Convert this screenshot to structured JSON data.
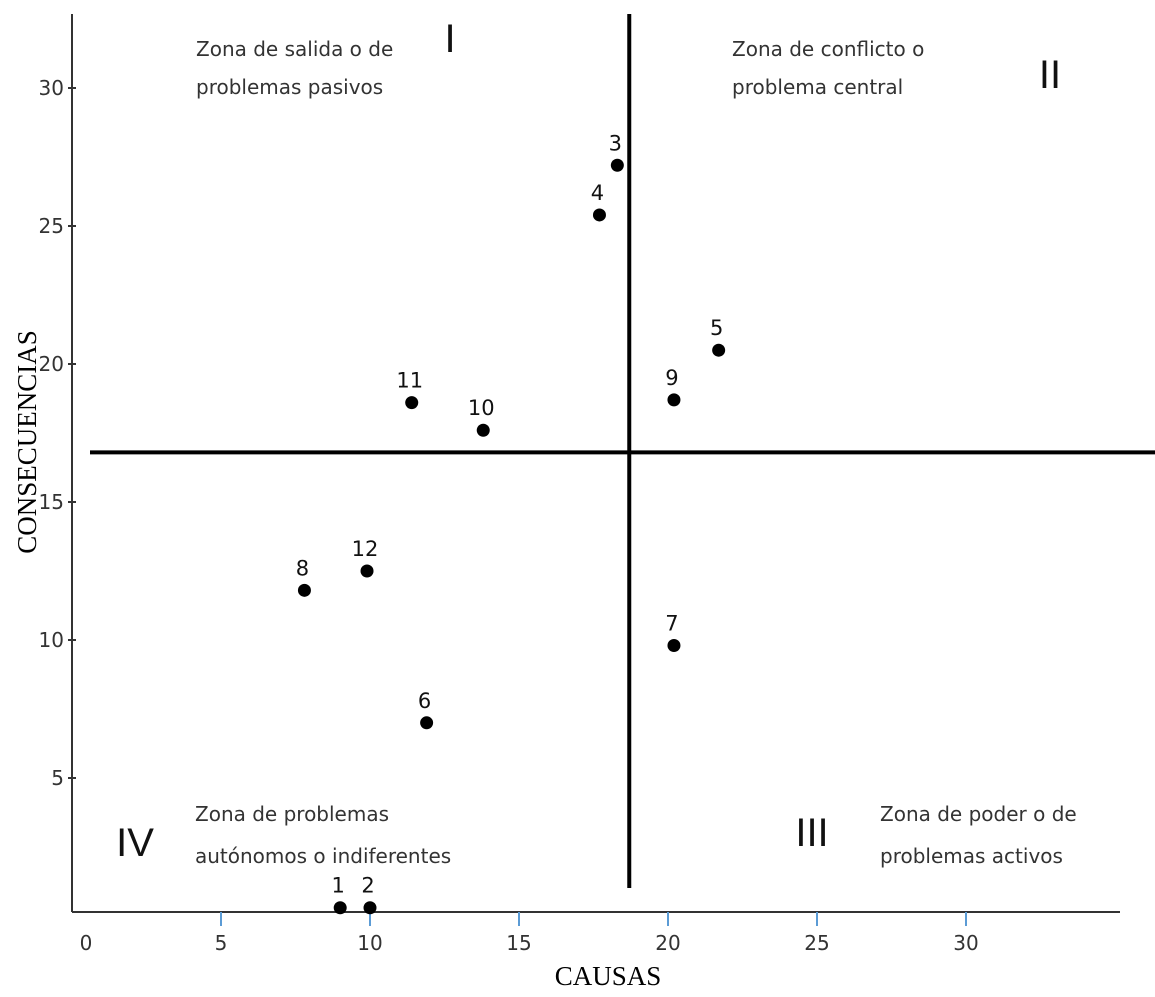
{
  "chart_data": {
    "type": "scatter",
    "xlabel": "CAUSAS",
    "ylabel": "CONSECUENCIAS",
    "x_ticks": [
      "0",
      "5",
      "10",
      "15",
      "20",
      "25",
      "30"
    ],
    "y_ticks": [
      "5",
      "10",
      "15",
      "20",
      "25",
      "30"
    ],
    "xlim": [
      0,
      35
    ],
    "ylim": [
      0,
      33
    ],
    "divider": {
      "x": 18.7,
      "y": 16.8
    },
    "points": [
      {
        "label": "1",
        "x": 9,
        "y": 0.3
      },
      {
        "label": "2",
        "x": 10,
        "y": 0.3
      },
      {
        "label": "3",
        "x": 18.3,
        "y": 27.2
      },
      {
        "label": "4",
        "x": 17.7,
        "y": 25.4
      },
      {
        "label": "5",
        "x": 21.7,
        "y": 20.5
      },
      {
        "label": "6",
        "x": 11.9,
        "y": 7.0
      },
      {
        "label": "7",
        "x": 20.2,
        "y": 9.8
      },
      {
        "label": "8",
        "x": 7.8,
        "y": 11.8
      },
      {
        "label": "9",
        "x": 20.2,
        "y": 18.7
      },
      {
        "label": "10",
        "x": 13.8,
        "y": 17.6
      },
      {
        "label": "11",
        "x": 11.4,
        "y": 18.6
      },
      {
        "label": "12",
        "x": 9.9,
        "y": 12.5
      }
    ],
    "zones": [
      {
        "numeral": "I",
        "line1": "Zona de salida o de",
        "line2": "problemas pasivos"
      },
      {
        "numeral": "II",
        "line1": "Zona de conflicto o",
        "line2": "problema central"
      },
      {
        "numeral": "III",
        "line1": "Zona de poder o de",
        "line2": "problemas activos"
      },
      {
        "numeral": "IV",
        "line1": "Zona de problemas",
        "line2": "autónomos o indiferentes"
      }
    ],
    "grid": false,
    "colors": {
      "axis": "#333333",
      "x_tick": "#5b9bd5",
      "divider": "#000000",
      "point": "#000000"
    }
  }
}
